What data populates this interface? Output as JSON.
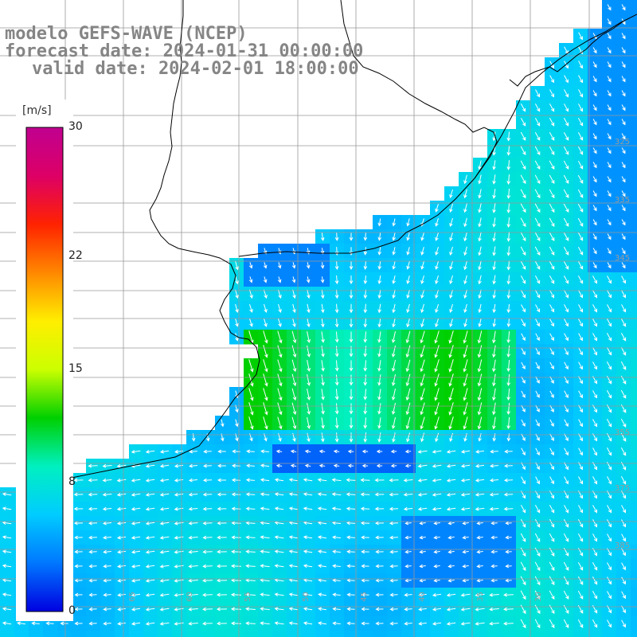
{
  "header": {
    "model_line": "modelo GEFS-WAVE (NCEP)",
    "forecast_line": "forecast date: 2024-01-31 00:00:00",
    "valid_line": "valid date: 2024-02-01 18:00:00"
  },
  "colorbar": {
    "units": "[m/s]",
    "ticks": [
      "30",
      "22",
      "15",
      "8",
      "0"
    ],
    "tick_values": [
      30,
      22,
      15,
      8,
      0
    ],
    "range": [
      0,
      30
    ],
    "colors": [
      "#0000e0",
      "#0077ff",
      "#00ccff",
      "#00f0c0",
      "#00d000",
      "#ccff00",
      "#ffee00",
      "#ff8800",
      "#ff2200",
      "#dd0066",
      "#c00090"
    ]
  },
  "map": {
    "variable": "wind speed and direction",
    "lat_labels": [
      "325",
      "335",
      "345",
      "355",
      "375",
      "385",
      "395",
      "405"
    ],
    "lon_labels": [
      "65",
      "60",
      "55",
      "50",
      "45",
      "40",
      "35",
      "30"
    ],
    "colors": {
      "land": "#ffffff",
      "grid": "#999999",
      "coast": "#000000",
      "arrow": "#ffffff"
    }
  }
}
